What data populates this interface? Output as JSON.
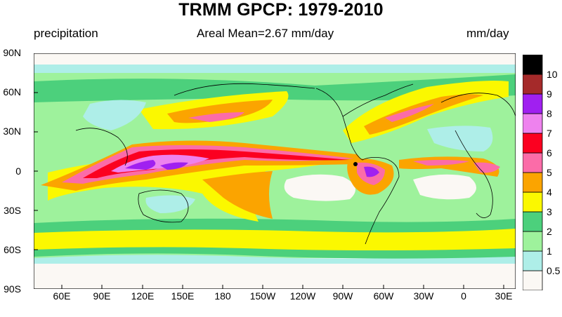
{
  "title": "TRMM GPCP: 1979-2010",
  "left_string": "precipitation",
  "center_string": "Areal Mean=2.67 mm/day",
  "right_string": "mm/day",
  "lat_labels": [
    "90N",
    "60N",
    "30N",
    "0",
    "30S",
    "60S",
    "90S"
  ],
  "lon_labels": [
    "60E",
    "90E",
    "120E",
    "150E",
    "180",
    "150W",
    "120W",
    "90W",
    "60W",
    "30W",
    "0",
    "30E"
  ],
  "colorbar": {
    "levels": [
      "0.5",
      "1",
      "2",
      "3",
      "4",
      "5",
      "6",
      "7",
      "8",
      "9",
      "10"
    ],
    "colors": [
      "#fbf8f4",
      "#aeeee8",
      "#9ef29c",
      "#4cd07c",
      "#fbf800",
      "#fba400",
      "#fb6ca8",
      "#fb0020",
      "#ee82ee",
      "#a020f0",
      "#a52a2a",
      "#000000"
    ]
  }
}
